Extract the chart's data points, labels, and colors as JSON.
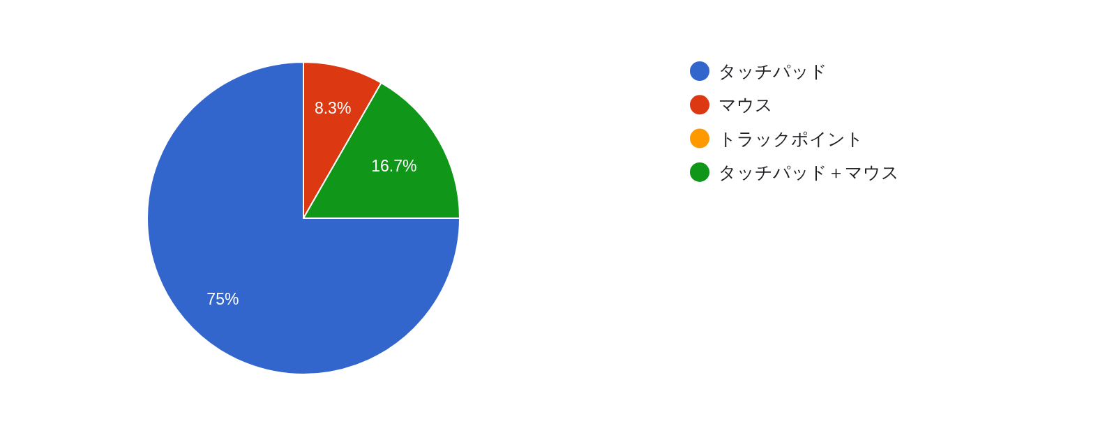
{
  "chart_data": {
    "type": "pie",
    "categories": [
      "タッチパッド",
      "マウス",
      "トラックポイント",
      "タッチパッド＋マウス"
    ],
    "values": [
      75,
      8.3,
      0,
      16.7
    ],
    "colors": [
      "#3366cc",
      "#dc3912",
      "#ff9900",
      "#109618"
    ],
    "value_labels": [
      "75%",
      "8.3%",
      null,
      "16.7%"
    ],
    "legend": "right"
  }
}
